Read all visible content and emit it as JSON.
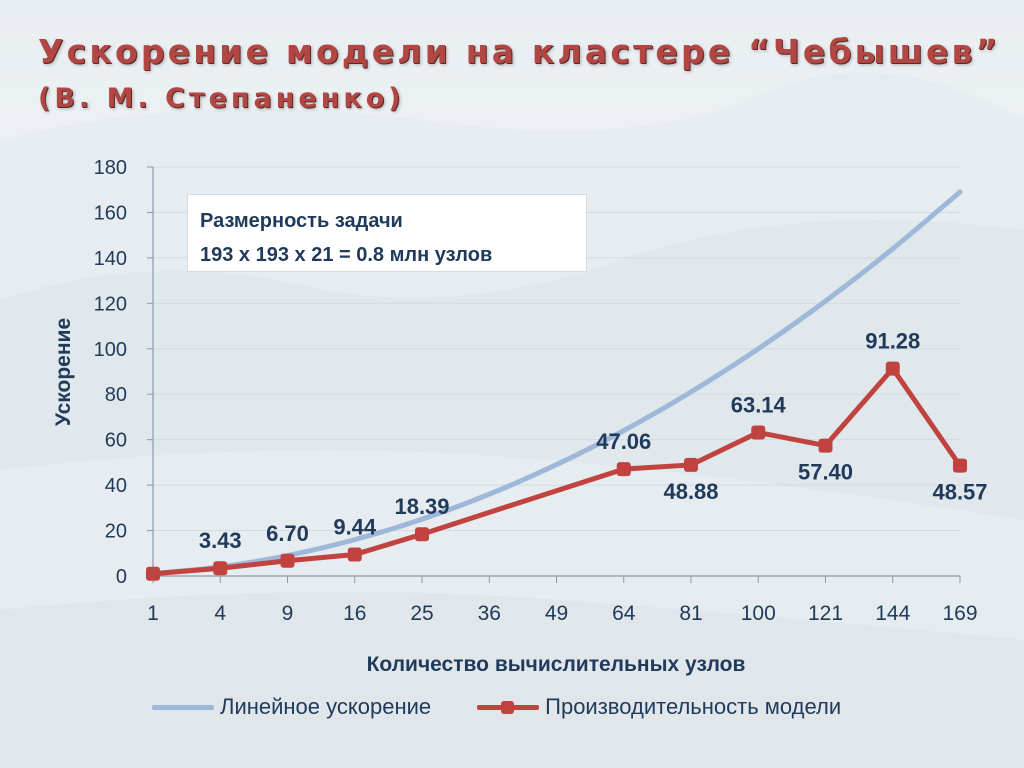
{
  "title": "Ускорение модели на кластере “Чебышев”",
  "subtitle": "(В. М. Степаненко)",
  "annotation": {
    "line1": "Размерность задачи",
    "line2": "193 х 193 х 21 = 0.8 млн узлов"
  },
  "colors": {
    "title": "#b14642",
    "axis_text": "#1f3a5a",
    "linear_series": "#9db8d8",
    "model_series": "#c0433f"
  },
  "chart_data": {
    "type": "line",
    "xlabel": "Количество вычислительных узлов",
    "ylabel": "Ускорение",
    "categories": [
      "1",
      "4",
      "9",
      "16",
      "25",
      "36",
      "49",
      "64",
      "81",
      "100",
      "121",
      "144",
      "169"
    ],
    "x": [
      1,
      4,
      9,
      16,
      25,
      36,
      49,
      64,
      81,
      100,
      121,
      144,
      169
    ],
    "ylim": [
      0,
      180
    ],
    "yticks": [
      "0",
      "20",
      "40",
      "60",
      "80",
      "100",
      "120",
      "140",
      "160",
      "180"
    ],
    "grid": "horizontal",
    "legend_position": "bottom",
    "series": [
      {
        "name": "Линейное ускорение",
        "values": [
          1,
          4,
          9,
          16,
          25,
          36,
          49,
          64,
          81,
          100,
          121,
          144,
          169
        ],
        "markers": false
      },
      {
        "name": "Производительность модели",
        "values": [
          1,
          3.43,
          6.7,
          9.44,
          18.39,
          28,
          37.5,
          47.06,
          48.88,
          63.14,
          57.4,
          91.28,
          48.57
        ],
        "markers": true,
        "data_labels": [
          "",
          "3.43",
          "6.70",
          "9.44",
          "18.39",
          "",
          "",
          "47.06",
          "48.88",
          "63.14",
          "57.40",
          "91.28",
          "48.57"
        ]
      }
    ]
  }
}
